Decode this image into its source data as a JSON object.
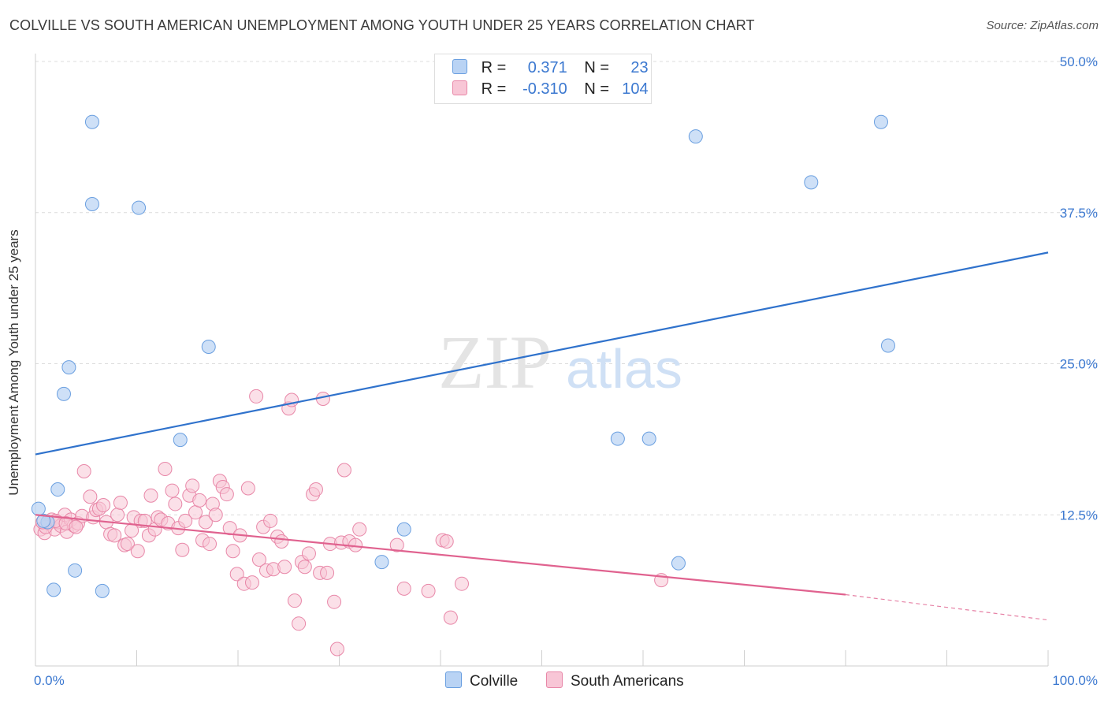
{
  "title": "COLVILLE VS SOUTH AMERICAN UNEMPLOYMENT AMONG YOUTH UNDER 25 YEARS CORRELATION CHART",
  "source": "Source: ZipAtlas.com",
  "watermark": {
    "zip": "ZIP",
    "atlas": "atlas"
  },
  "colors": {
    "blue_fill": "#b9d3f4",
    "blue_stroke": "#6a9fe0",
    "blue_line": "#2f72cc",
    "pink_fill": "#f8c6d6",
    "pink_stroke": "#e887a8",
    "pink_line": "#e0628f",
    "tick_label": "#3b78d0",
    "grid": "#dcdcdc"
  },
  "legend": {
    "rows": [
      {
        "r_label": "R =",
        "r_value": "0.371",
        "n_label": "N =",
        "n_value": "23"
      },
      {
        "r_label": "R =",
        "r_value": "-0.310",
        "n_label": "N =",
        "n_value": "104"
      }
    ]
  },
  "bottom_legend": {
    "colville": "Colville",
    "south_americans": "South Americans"
  },
  "chart_data": {
    "type": "scatter",
    "title": "COLVILLE VS SOUTH AMERICAN UNEMPLOYMENT AMONG YOUTH UNDER 25 YEARS CORRELATION CHART",
    "xlabel": "",
    "ylabel": "Unemployment Among Youth under 25 years",
    "xlim": [
      0,
      100
    ],
    "ylim": [
      0,
      50
    ],
    "x_tick_labels": [
      "0.0%",
      "100.0%"
    ],
    "y_ticks": [
      12.5,
      25.0,
      37.5,
      50.0
    ],
    "y_tick_labels": [
      "12.5%",
      "25.0%",
      "37.5%",
      "50.0%"
    ],
    "grid": "horizontal dashed",
    "legend_placement": "top-center",
    "series": [
      {
        "name": "Colville",
        "r": 0.371,
        "n": 23,
        "trend": {
          "x": [
            0,
            100
          ],
          "y": [
            17.5,
            34.2
          ],
          "style": "solid"
        },
        "points": [
          [
            0.3,
            13.0
          ],
          [
            1.2,
            11.9
          ],
          [
            1.8,
            6.3
          ],
          [
            2.2,
            14.6
          ],
          [
            2.8,
            22.5
          ],
          [
            3.3,
            24.7
          ],
          [
            3.9,
            7.9
          ],
          [
            5.6,
            45.0
          ],
          [
            5.6,
            38.2
          ],
          [
            6.6,
            6.2
          ],
          [
            10.2,
            37.9
          ],
          [
            14.3,
            18.7
          ],
          [
            17.1,
            26.4
          ],
          [
            34.2,
            8.6
          ],
          [
            36.4,
            11.3
          ],
          [
            57.5,
            18.8
          ],
          [
            60.6,
            18.8
          ],
          [
            63.5,
            8.5
          ],
          [
            65.2,
            43.8
          ],
          [
            76.6,
            40.0
          ],
          [
            83.5,
            45.0
          ],
          [
            84.2,
            26.5
          ],
          [
            0.8,
            12.0
          ]
        ]
      },
      {
        "name": "South Americans",
        "r": -0.31,
        "n": 104,
        "trend": {
          "x": [
            0,
            80,
            100
          ],
          "y": [
            12.5,
            5.9,
            3.8
          ],
          "style": "solid to 80, dashed after"
        },
        "points": [
          [
            0.5,
            11.3
          ],
          [
            0.9,
            11.0
          ],
          [
            1.3,
            11.8
          ],
          [
            1.6,
            12.1
          ],
          [
            1.9,
            11.3
          ],
          [
            2.2,
            11.9
          ],
          [
            2.5,
            11.6
          ],
          [
            2.9,
            12.5
          ],
          [
            3.1,
            11.1
          ],
          [
            3.5,
            12.1
          ],
          [
            3.8,
            11.6
          ],
          [
            4.2,
            11.8
          ],
          [
            4.6,
            12.4
          ],
          [
            4.8,
            16.1
          ],
          [
            5.4,
            14.0
          ],
          [
            5.7,
            12.3
          ],
          [
            6.0,
            12.9
          ],
          [
            6.3,
            13.0
          ],
          [
            6.7,
            13.3
          ],
          [
            7.0,
            11.9
          ],
          [
            7.4,
            10.9
          ],
          [
            7.8,
            10.8
          ],
          [
            8.1,
            12.5
          ],
          [
            8.4,
            13.5
          ],
          [
            8.8,
            10.0
          ],
          [
            9.1,
            10.1
          ],
          [
            9.5,
            11.2
          ],
          [
            9.7,
            12.3
          ],
          [
            10.1,
            9.5
          ],
          [
            10.4,
            12.0
          ],
          [
            10.8,
            12.0
          ],
          [
            11.2,
            10.8
          ],
          [
            11.4,
            14.1
          ],
          [
            11.8,
            11.3
          ],
          [
            12.1,
            12.3
          ],
          [
            12.4,
            12.1
          ],
          [
            12.8,
            16.3
          ],
          [
            13.1,
            11.8
          ],
          [
            13.5,
            14.5
          ],
          [
            13.8,
            13.4
          ],
          [
            14.1,
            11.4
          ],
          [
            14.5,
            9.6
          ],
          [
            14.8,
            12.0
          ],
          [
            15.2,
            14.1
          ],
          [
            15.5,
            14.9
          ],
          [
            15.8,
            12.7
          ],
          [
            16.2,
            13.7
          ],
          [
            16.5,
            10.4
          ],
          [
            16.8,
            11.9
          ],
          [
            17.2,
            10.1
          ],
          [
            17.5,
            13.4
          ],
          [
            17.8,
            12.5
          ],
          [
            18.2,
            15.3
          ],
          [
            18.5,
            14.8
          ],
          [
            18.9,
            14.2
          ],
          [
            19.2,
            11.4
          ],
          [
            19.5,
            9.5
          ],
          [
            19.9,
            7.6
          ],
          [
            20.2,
            10.8
          ],
          [
            20.6,
            6.8
          ],
          [
            21.0,
            14.7
          ],
          [
            21.4,
            6.9
          ],
          [
            21.8,
            22.3
          ],
          [
            22.1,
            8.8
          ],
          [
            22.5,
            11.5
          ],
          [
            22.8,
            7.9
          ],
          [
            23.2,
            12.0
          ],
          [
            23.5,
            8.0
          ],
          [
            23.9,
            10.7
          ],
          [
            24.3,
            10.3
          ],
          [
            24.6,
            8.2
          ],
          [
            25.0,
            21.3
          ],
          [
            25.3,
            22.0
          ],
          [
            25.6,
            5.4
          ],
          [
            26.0,
            3.5
          ],
          [
            26.3,
            8.6
          ],
          [
            26.6,
            8.2
          ],
          [
            27.0,
            9.3
          ],
          [
            27.4,
            14.2
          ],
          [
            27.7,
            14.6
          ],
          [
            28.1,
            7.7
          ],
          [
            28.4,
            22.1
          ],
          [
            28.8,
            7.7
          ],
          [
            29.1,
            10.1
          ],
          [
            29.5,
            5.3
          ],
          [
            29.8,
            1.4
          ],
          [
            30.2,
            10.2
          ],
          [
            30.5,
            16.2
          ],
          [
            31.0,
            10.3
          ],
          [
            31.6,
            10.0
          ],
          [
            32.0,
            11.3
          ],
          [
            35.7,
            10.0
          ],
          [
            36.4,
            6.4
          ],
          [
            38.8,
            6.2
          ],
          [
            40.2,
            10.4
          ],
          [
            40.6,
            10.3
          ],
          [
            41.0,
            4.0
          ],
          [
            42.1,
            6.8
          ],
          [
            61.8,
            7.1
          ],
          [
            1.0,
            11.5
          ],
          [
            2.0,
            12.0
          ],
          [
            3.0,
            11.8
          ],
          [
            4.0,
            11.5
          ],
          [
            0.7,
            11.9
          ]
        ]
      }
    ]
  }
}
